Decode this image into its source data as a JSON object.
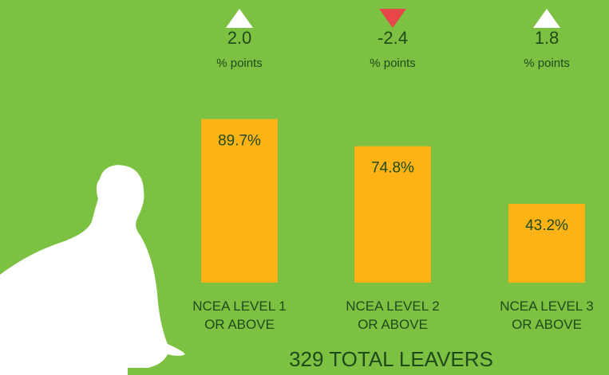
{
  "chart_data": {
    "type": "bar",
    "title": "329 TOTAL LEAVERS",
    "categories": [
      "NCEA LEVEL 1 OR ABOVE",
      "NCEA LEVEL 2 OR ABOVE",
      "NCEA LEVEL 3 OR ABOVE"
    ],
    "values": [
      89.7,
      74.8,
      43.2
    ],
    "value_labels": [
      "89.7%",
      "74.8%",
      "43.2%"
    ],
    "color": "#fdb316",
    "changes": [
      2.0,
      -2.4,
      1.8
    ],
    "change_labels": [
      "2.0",
      "-2.4",
      "1.8"
    ],
    "change_unit": "% points",
    "up_color": "#ffffff",
    "down_color": "#e8474a"
  }
}
